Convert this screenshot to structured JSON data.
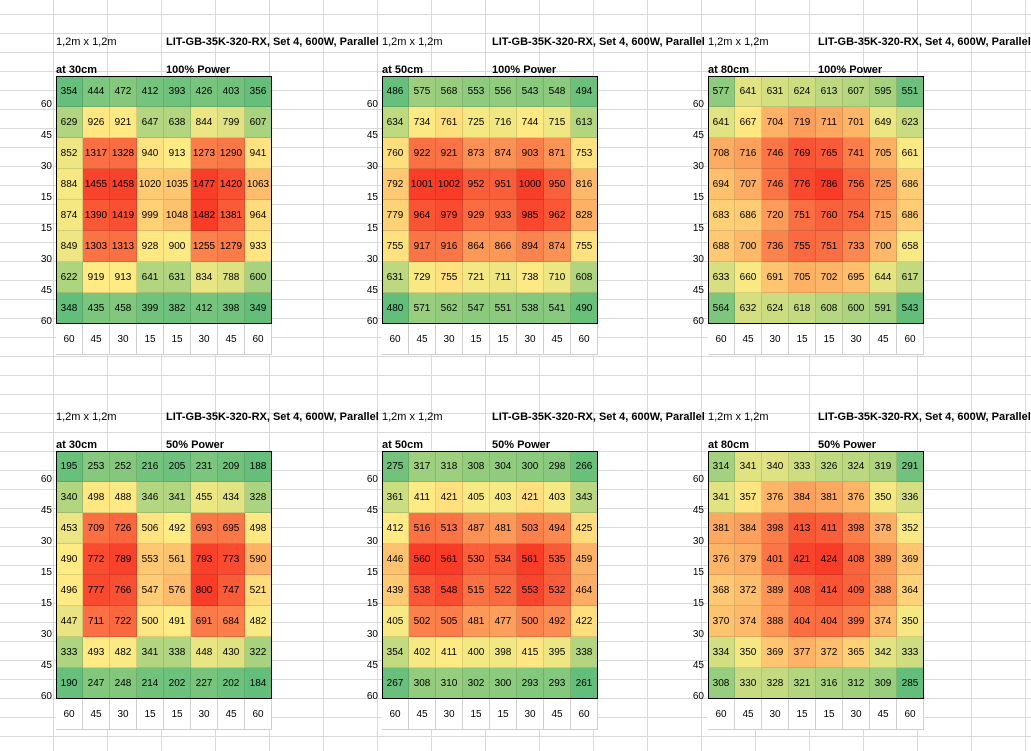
{
  "chart_data": [
    {
      "type": "heatmap",
      "area": "1,2m x 1,2m",
      "title": "LIT-GB-35K-320-RX, Set 4, 600W, Parallel",
      "height": "at 30cm",
      "power": "100% Power",
      "row_labels": [
        "60",
        "45",
        "30",
        "15",
        "15",
        "30",
        "45",
        "60"
      ],
      "col_labels": [
        "60",
        "45",
        "30",
        "15",
        "15",
        "30",
        "45",
        "60"
      ],
      "values": [
        [
          354,
          444,
          472,
          412,
          393,
          426,
          403,
          356
        ],
        [
          629,
          926,
          921,
          647,
          638,
          844,
          799,
          607
        ],
        [
          852,
          1317,
          1328,
          940,
          913,
          1273,
          1290,
          941
        ],
        [
          884,
          1455,
          1458,
          1020,
          1035,
          1477,
          1420,
          1063
        ],
        [
          874,
          1390,
          1419,
          999,
          1048,
          1482,
          1381,
          964
        ],
        [
          849,
          1303,
          1313,
          928,
          900,
          1255,
          1279,
          933
        ],
        [
          622,
          919,
          913,
          641,
          631,
          834,
          788,
          600
        ],
        [
          348,
          435,
          458,
          399,
          382,
          412,
          398,
          349
        ]
      ]
    },
    {
      "type": "heatmap",
      "area": "1,2m x 1,2m",
      "title": "LIT-GB-35K-320-RX, Set 4, 600W, Parallel",
      "height": "at 50cm",
      "power": "100% Power",
      "row_labels": [
        "60",
        "45",
        "30",
        "15",
        "15",
        "30",
        "45",
        "60"
      ],
      "col_labels": [
        "60",
        "45",
        "30",
        "15",
        "15",
        "30",
        "45",
        "60"
      ],
      "values": [
        [
          486,
          575,
          568,
          553,
          556,
          543,
          548,
          494
        ],
        [
          634,
          734,
          761,
          725,
          716,
          744,
          715,
          613
        ],
        [
          760,
          922,
          921,
          873,
          874,
          903,
          871,
          753
        ],
        [
          792,
          1001,
          1002,
          952,
          951,
          1000,
          950,
          816
        ],
        [
          779,
          964,
          979,
          929,
          933,
          985,
          962,
          828
        ],
        [
          755,
          917,
          916,
          864,
          866,
          894,
          874,
          755
        ],
        [
          631,
          729,
          755,
          721,
          711,
          738,
          710,
          608
        ],
        [
          480,
          571,
          562,
          547,
          551,
          538,
          541,
          490
        ]
      ]
    },
    {
      "type": "heatmap",
      "area": "1,2m x 1,2m",
      "title": "LIT-GB-35K-320-RX, Set 4, 600W, Parallel",
      "height": "at 80cm",
      "power": "100% Power",
      "row_labels": [
        "60",
        "45",
        "30",
        "15",
        "15",
        "30",
        "45",
        "60"
      ],
      "col_labels": [
        "60",
        "45",
        "30",
        "15",
        "15",
        "30",
        "45",
        "60"
      ],
      "values": [
        [
          577,
          641,
          631,
          624,
          613,
          607,
          595,
          551
        ],
        [
          641,
          667,
          704,
          719,
          711,
          701,
          649,
          623
        ],
        [
          708,
          716,
          746,
          769,
          765,
          741,
          705,
          661
        ],
        [
          694,
          707,
          746,
          776,
          786,
          756,
          725,
          686
        ],
        [
          683,
          686,
          720,
          751,
          760,
          754,
          715,
          686
        ],
        [
          688,
          700,
          736,
          755,
          751,
          733,
          700,
          658
        ],
        [
          633,
          660,
          691,
          705,
          702,
          695,
          644,
          617
        ],
        [
          564,
          632,
          624,
          618,
          608,
          600,
          591,
          543
        ]
      ]
    },
    {
      "type": "heatmap",
      "area": "1,2m x 1,2m",
      "title": "LIT-GB-35K-320-RX, Set 4, 600W, Parallel",
      "height": "at 30cm",
      "power": "50% Power",
      "row_labels": [
        "60",
        "45",
        "30",
        "15",
        "15",
        "30",
        "45",
        "60"
      ],
      "col_labels": [
        "60",
        "45",
        "30",
        "15",
        "15",
        "30",
        "45",
        "60"
      ],
      "values": [
        [
          195,
          253,
          252,
          216,
          205,
          231,
          209,
          188
        ],
        [
          340,
          498,
          488,
          346,
          341,
          455,
          434,
          328
        ],
        [
          453,
          709,
          726,
          506,
          492,
          693,
          695,
          498
        ],
        [
          490,
          772,
          789,
          553,
          561,
          793,
          773,
          590
        ],
        [
          496,
          777,
          766,
          547,
          576,
          800,
          747,
          521
        ],
        [
          447,
          711,
          722,
          500,
          491,
          691,
          684,
          482
        ],
        [
          333,
          493,
          482,
          341,
          338,
          448,
          430,
          322
        ],
        [
          190,
          247,
          248,
          214,
          202,
          227,
          202,
          184
        ]
      ]
    },
    {
      "type": "heatmap",
      "area": "1,2m x 1,2m",
      "title": "LIT-GB-35K-320-RX, Set 4, 600W, Parallel",
      "height": "at 50cm",
      "power": "50% Power",
      "row_labels": [
        "60",
        "45",
        "30",
        "15",
        "15",
        "30",
        "45",
        "60"
      ],
      "col_labels": [
        "60",
        "45",
        "30",
        "15",
        "15",
        "30",
        "45",
        "60"
      ],
      "values": [
        [
          275,
          317,
          318,
          308,
          304,
          300,
          298,
          266
        ],
        [
          361,
          411,
          421,
          405,
          403,
          421,
          403,
          343
        ],
        [
          412,
          516,
          513,
          487,
          481,
          503,
          494,
          425
        ],
        [
          446,
          560,
          561,
          530,
          534,
          561,
          535,
          459
        ],
        [
          439,
          538,
          548,
          515,
          522,
          553,
          532,
          464
        ],
        [
          405,
          502,
          505,
          481,
          477,
          500,
          492,
          422
        ],
        [
          354,
          402,
          411,
          400,
          398,
          415,
          395,
          338
        ],
        [
          267,
          308,
          310,
          302,
          300,
          293,
          293,
          261
        ]
      ]
    },
    {
      "type": "heatmap",
      "area": "1,2m x 1,2m",
      "title": "LIT-GB-35K-320-RX, Set 4, 600W, Parallel",
      "height": "at 80cm",
      "power": "50% Power",
      "row_labels": [
        "60",
        "45",
        "30",
        "15",
        "15",
        "30",
        "45",
        "60"
      ],
      "col_labels": [
        "60",
        "45",
        "30",
        "15",
        "15",
        "30",
        "45",
        "60"
      ],
      "values": [
        [
          314,
          341,
          340,
          333,
          326,
          324,
          319,
          291
        ],
        [
          341,
          357,
          376,
          384,
          381,
          376,
          350,
          336
        ],
        [
          381,
          384,
          398,
          413,
          411,
          398,
          378,
          352
        ],
        [
          376,
          379,
          401,
          421,
          424,
          408,
          389,
          369
        ],
        [
          368,
          372,
          389,
          408,
          414,
          409,
          388,
          364
        ],
        [
          370,
          374,
          388,
          404,
          404,
          399,
          374,
          350
        ],
        [
          334,
          350,
          369,
          377,
          372,
          365,
          342,
          333
        ],
        [
          308,
          330,
          328,
          321,
          316,
          312,
          309,
          285
        ]
      ]
    }
  ]
}
